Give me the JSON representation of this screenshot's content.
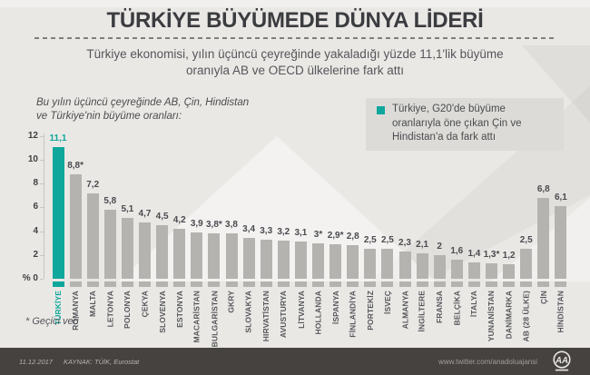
{
  "header": {
    "title": "TÜRKİYE BÜYÜMEDE DÜNYA LİDERİ",
    "subtitle_lines": [
      "Türkiye ekonomisi, yılın üçüncü çeyreğinde yakaladığı yüzde 11,1'lik büyüme",
      "oranıyla AB ve OECD ülkelerine fark attı"
    ]
  },
  "annotation": {
    "lines": [
      "Bu yılın üçüncü çeyreğinde AB, Çin, Hindistan",
      "ve Türkiye'nin büyüme oranları:"
    ]
  },
  "legend": {
    "lines": [
      "Türkiye, G20'de büyüme",
      "oranlarıyla öne çıkan Çin ve",
      "Hindistan'a da fark attı"
    ],
    "bullet_color": "#0fa79c"
  },
  "chart_data": {
    "type": "bar",
    "title": "Bu yılın üçüncü çeyreğinde AB, Çin, Hindistan ve Türkiye'nin büyüme oranları:",
    "unit": "%",
    "ylim": [
      0,
      12
    ],
    "yticks": [
      12,
      10,
      8,
      6,
      4,
      2,
      0
    ],
    "ytick_labels": [
      "12",
      "10",
      "8",
      "6",
      "4",
      "2",
      "% 0"
    ],
    "grid": false,
    "legend_position": "top-right",
    "categories": [
      "TÜRKİYE",
      "ROMANYA",
      "MALTA",
      "LETONYA",
      "POLONYA",
      "ÇEKYA",
      "SLOVENYA",
      "ESTONYA",
      "MACARİSTAN",
      "BULGARİSTAN",
      "GKRY",
      "SLOVAKYA",
      "HIRVATİSTAN",
      "AVUSTURYA",
      "LİTVANYA",
      "HOLLANDA",
      "İSPANYA",
      "FİNLANDİYA",
      "PORTEKİZ",
      "İSVEÇ",
      "ALMANYA",
      "İNGİLTERE",
      "FRANSA",
      "BELÇİKA",
      "İTALYA",
      "YUNANİSTAN",
      "DANİMARKA",
      "AB (28 ÜLKE)",
      "ÇİN",
      "HİNDİSTAN"
    ],
    "values": [
      11.1,
      8.8,
      7.2,
      5.8,
      5.1,
      4.7,
      4.5,
      4.2,
      3.9,
      3.8,
      3.8,
      3.4,
      3.3,
      3.2,
      3.1,
      3.0,
      2.9,
      2.8,
      2.5,
      2.5,
      2.3,
      2.1,
      2.0,
      1.6,
      1.4,
      1.3,
      1.2,
      2.5,
      6.8,
      6.1
    ],
    "value_labels": [
      "11,1",
      "8,8*",
      "7,2",
      "5,8",
      "5,1",
      "4,7",
      "4,5",
      "4,2",
      "3,9",
      "3,8*",
      "3,8",
      "3,4",
      "3,3",
      "3,2",
      "3,1",
      "3*",
      "2,9*",
      "2,8",
      "2,5",
      "2,5",
      "2,3",
      "2,1",
      "2",
      "1,6",
      "1,4",
      "1,3*",
      "1,2",
      "2,5",
      "6,8",
      "6,1"
    ],
    "highlight_index": 0,
    "colors": {
      "highlight": "#0fa79c",
      "bar": "#b5b3b0",
      "axis": "#c7c5c2",
      "tick_text": "#3f4043",
      "value_text": "#4a4b4f",
      "category_text": "#55565a"
    }
  },
  "footnote": "* Geçici veri",
  "footer": {
    "date": "11.12.2017",
    "source": "KAYNAK: TÜİK, Eurostat",
    "twitter": "www.twitter.com/anadoluajansi",
    "logo_text": "AA"
  }
}
